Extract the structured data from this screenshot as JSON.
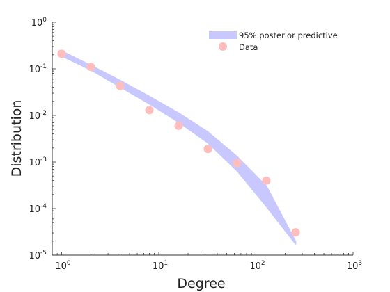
{
  "chart_data": {
    "type": "scatter",
    "title": "",
    "xlabel": "Degree",
    "ylabel": "Distribution",
    "xscale": "log",
    "yscale": "log",
    "xlim": [
      0.8,
      1000
    ],
    "ylim": [
      1e-05,
      1
    ],
    "grid": false,
    "legend_position": "top-right",
    "xticks": [
      {
        "value": 1,
        "base": "10",
        "exp": "0"
      },
      {
        "value": 10,
        "base": "10",
        "exp": "1"
      },
      {
        "value": 100,
        "base": "10",
        "exp": "2"
      },
      {
        "value": 1000,
        "base": "10",
        "exp": "3"
      }
    ],
    "yticks": [
      {
        "value": 1e-05,
        "base": "10",
        "exp": "-5"
      },
      {
        "value": 0.0001,
        "base": "10",
        "exp": "-4"
      },
      {
        "value": 0.001,
        "base": "10",
        "exp": "-3"
      },
      {
        "value": 0.01,
        "base": "10",
        "exp": "-2"
      },
      {
        "value": 0.1,
        "base": "10",
        "exp": "-1"
      },
      {
        "value": 1,
        "base": "10",
        "exp": "0"
      }
    ],
    "band": {
      "name": "95% posterior predictive",
      "color": "#c8c8ff",
      "x": [
        1,
        2,
        4,
        8,
        16,
        32,
        64,
        128,
        256
      ],
      "upper": [
        0.24,
        0.118,
        0.056,
        0.0255,
        0.0112,
        0.0044,
        0.0013,
        0.0003,
        1.95e-05
      ],
      "lower": [
        0.19,
        0.095,
        0.041,
        0.0178,
        0.0072,
        0.0026,
        0.00065,
        0.000112,
        1.75e-05
      ]
    },
    "points": {
      "name": "Data",
      "color": "#ffbdbd",
      "x": [
        1,
        2,
        4,
        8,
        16,
        32,
        64,
        128,
        256
      ],
      "y": [
        0.21,
        0.11,
        0.043,
        0.013,
        0.006,
        0.0019,
        0.00095,
        0.0004,
        3.1e-05
      ]
    }
  }
}
